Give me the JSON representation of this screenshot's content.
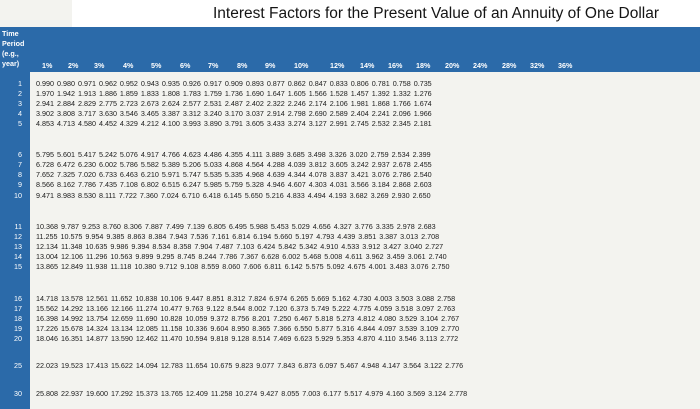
{
  "title": "Interest Factors for the Present Value of an Annuity of One Dollar",
  "stub_header": [
    "Time",
    "Period",
    "(e.g.,",
    "year)"
  ],
  "column_headers": [
    "1%",
    "2%",
    "3%",
    "4%",
    "5%",
    "6%",
    "7%",
    "8%",
    "9%",
    "10%",
    "12%",
    "14%",
    "16%",
    "18%",
    "20%",
    "24%",
    "28%",
    "32%",
    "36%"
  ],
  "rows": [
    {
      "period": "1",
      "values": "0.990 0.980 0.971 0.962 0.952 0.943 0.935 0.926 0.917 0.909 0.893 0.877 0.862 0.847 0.833 0.806 0.781 0.758 0.735"
    },
    {
      "period": "2",
      "values": "1.970 1.942 1.913 1.886 1.859 1.833 1.808 1.783 1.759 1.736 1.690 1.647 1.605 1.566 1.528 1.457 1.392 1.332 1.276"
    },
    {
      "period": "3",
      "values": "2.941 2.884 2.829 2.775 2.723 2.673 2.624 2.577 2.531 2.487 2.402 2.322 2.246 2.174 2.106 1.981 1.868 1.766 1.674"
    },
    {
      "period": "4",
      "values": "3.902 3.808 3.717 3.630 3.546 3.465 3.387 3.312 3.240 3.170 3.037 2.914 2.798 2.690 2.589 2.404 2.241 2.096 1.966"
    },
    {
      "period": "5",
      "values": "4.853 4.713 4.580 4.452 4.329 4.212 4.100 3.993 3.890 3.791 3.605 3.433 3.274 3.127 2.991 2.745 2.532 2.345 2.181"
    },
    {
      "period": "6",
      "values": "5.795 5.601 5.417 5.242 5.076 4.917 4.766 4.623 4.486 4.355 4.111 3.889 3.685 3.498 3.326 3.020 2.759 2.534 2.399"
    },
    {
      "period": "7",
      "values": "6.728 6.472 6.230 6.002 5.786 5.582 5.389 5.206 5.033 4.868 4.564 4.288 4.039 3.812 3.605 3.242 2.937 2.678 2.455"
    },
    {
      "period": "8",
      "values": "7.652 7.325 7.020 6.733 6.463 6.210 5.971 5.747 5.535 5.335 4.968 4.639 4.344 4.078 3.837 3.421 3.076 2.786 2.540"
    },
    {
      "period": "9",
      "values": "8.566 8.162 7.786 7.435 7.108 6.802 6.515 6.247 5.985 5.759 5.328 4.946 4.607 4.303 4.031 3.566 3.184 2.868 2.603"
    },
    {
      "period": "10",
      "values": "9.471 8.983 8.530 8.111 7.722 7.360 7.024 6.710 6.418 6.145 5.650 5.216 4.833 4.494 4.193 3.682 3.269 2.930 2.650"
    },
    {
      "period": "11",
      "values": "10.368 9.787 9.253 8.760 8.306 7.887 7.499 7.139 6.805 6.495 5.988 5.453 5.029 4.656 4.327 3.776 3.335 2.978 2.683"
    },
    {
      "period": "12",
      "values": "11.255 10.575 9.954 9.385 8.863 8.384 7.943 7.536 7.161 6.814 6.194 5.660 5.197 4.793 4.439 3.851 3.387 3.013 2.708"
    },
    {
      "period": "13",
      "values": "12.134 11.348 10.635 9.986 9.394 8.534 8.358 7.904 7.487 7.103 6.424 5.842 5.342 4.910 4.533 3.912 3.427 3.040 2.727"
    },
    {
      "period": "14",
      "values": "13.004 12.106 11.296 10.563 9.899 9.295 8.745 8.244 7.786 7.367 6.628 6.002 5.468 5.008 4.611 3.962 3.459 3.061 2.740"
    },
    {
      "period": "15",
      "values": "13.865 12.849 11.938 11.118 10.380 9.712 9.108 8.559 8.060 7.606 6.811 6.142 5.575 5.092 4.675 4.001 3.483 3.076 2.750"
    },
    {
      "period": "16",
      "values": "14.718 13.578 12.561 11.652 10.838 10.106 9.447 8.851 8.312 7.824 6.974 6.265 5.669 5.162 4.730 4.003 3.503 3.088 2.758"
    },
    {
      "period": "17",
      "values": "15.562 14.292 13.166 12.166 11.274 10.477 9.763 9.122 8.544 8.002 7.120 6.373 5.749 5.222 4.775 4.059 3.518 3.097 2.763"
    },
    {
      "period": "18",
      "values": "16.398 14.992 13.754 12.659 11.690 10.828 10.059 9.372 8.756 8.201 7.250 6.467 5.818 5.273 4.812 4.080 3.529 3.104 2.767"
    },
    {
      "period": "19",
      "values": "17.226 15.678 14.324 13.134 12.085 11.158 10.336 9.604 8.950 8.365 7.366 6.550 5.877 5.316 4.844 4.097 3.539 3.109 2.770"
    },
    {
      "period": "20",
      "values": "18.046 16.351 14.877 13.590 12.462 11.470 10.594 9.818 9.128 8.514 7.469 6.623 5.929 5.353 4.870 4.110 3.546 3.113 2.772"
    },
    {
      "period": "25",
      "values": "22.023 19.523 17.413 15.622 14.094 12.783 11.654 10.675 9.823 9.077 7.843 6.873 6.097 5.467 4.948 4.147 3.564 3.122 2.776"
    },
    {
      "period": "30",
      "values": "25.808 22.937 19.600 17.292 15.373 13.765 12.409 11.258 10.274 9.427 8.055 7.003 6.177 5.517 4.979 4.160 3.569 3.124 2.778"
    }
  ]
}
